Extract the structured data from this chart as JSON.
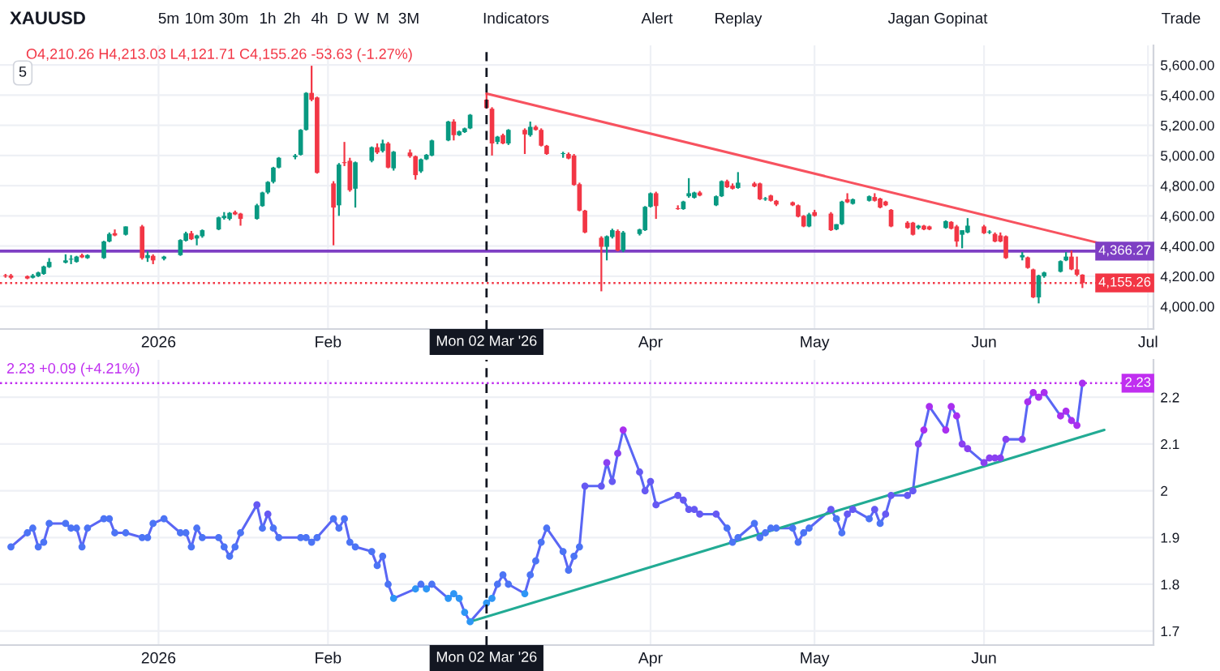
{
  "chart_data": [
    {
      "type": "candlestick",
      "title": "XAUUSD",
      "subtitle": "O4,210.26 H4,213.03 L4,121.71 C4,155.26 -53.63 (-1.27%)",
      "annotations": [
        "5m",
        "10m",
        "30m",
        "1h",
        "2h",
        "4h",
        "D",
        "W",
        "M",
        "3M",
        "Indicators",
        "Alert",
        "Replay",
        "Jagan Gopinat",
        "Trade",
        "5"
      ],
      "x": [
        "2025-12-04",
        "2025-12-05",
        "2025-12-08",
        "2025-12-09",
        "2025-12-10",
        "2025-12-11",
        "2025-12-12",
        "2025-12-15",
        "2025-12-16",
        "2025-12-17",
        "2025-12-18",
        "2025-12-19",
        "2025-12-22",
        "2025-12-23",
        "2025-12-24",
        "2025-12-26",
        "2025-12-29",
        "2025-12-30",
        "2025-12-31",
        "2026-01-02",
        "2026-01-05",
        "2026-01-06",
        "2026-01-07",
        "2026-01-08",
        "2026-01-09",
        "2026-01-12",
        "2026-01-13",
        "2026-01-14",
        "2026-01-15",
        "2026-01-16",
        "2026-01-19",
        "2026-01-20",
        "2026-01-21",
        "2026-01-22",
        "2026-01-23",
        "2026-01-26",
        "2026-01-27",
        "2026-01-28",
        "2026-01-29",
        "2026-01-30",
        "2026-02-02",
        "2026-02-03",
        "2026-02-04",
        "2026-02-05",
        "2026-02-06",
        "2026-02-09",
        "2026-02-10",
        "2026-02-11",
        "2026-02-12",
        "2026-02-13",
        "2026-02-16",
        "2026-02-17",
        "2026-02-18",
        "2026-02-19",
        "2026-02-20",
        "2026-02-23",
        "2026-02-24",
        "2026-02-25",
        "2026-02-26",
        "2026-02-27",
        "2026-03-02",
        "2026-03-03",
        "2026-03-04",
        "2026-03-05",
        "2026-03-06",
        "2026-03-09",
        "2026-03-10",
        "2026-03-11",
        "2026-03-12",
        "2026-03-13",
        "2026-03-16",
        "2026-03-17",
        "2026-03-18",
        "2026-03-19",
        "2026-03-20",
        "2026-03-23",
        "2026-03-24",
        "2026-03-25",
        "2026-03-26",
        "2026-03-27",
        "2026-03-30",
        "2026-03-31",
        "2026-04-01",
        "2026-04-02",
        "2026-04-06",
        "2026-04-07",
        "2026-04-08",
        "2026-04-09",
        "2026-04-10",
        "2026-04-13",
        "2026-04-14",
        "2026-04-15",
        "2026-04-16",
        "2026-04-17",
        "2026-04-20",
        "2026-04-21",
        "2026-04-22",
        "2026-04-23",
        "2026-04-24",
        "2026-04-27",
        "2026-04-28",
        "2026-04-29",
        "2026-04-30",
        "2026-05-01",
        "2026-05-04",
        "2026-05-05",
        "2026-05-06",
        "2026-05-07",
        "2026-05-08",
        "2026-05-11",
        "2026-05-12",
        "2026-05-13",
        "2026-05-14",
        "2026-05-15",
        "2026-05-18",
        "2026-05-19",
        "2026-05-20",
        "2026-05-21",
        "2026-05-22",
        "2026-05-25",
        "2026-05-26",
        "2026-05-27",
        "2026-05-28",
        "2026-05-29",
        "2026-06-01",
        "2026-06-02",
        "2026-06-03",
        "2026-06-04",
        "2026-06-05",
        "2026-06-08",
        "2026-06-09",
        "2026-06-10",
        "2026-06-11",
        "2026-06-12",
        "2026-06-15",
        "2026-06-16",
        "2026-06-17",
        "2026-06-18",
        "2026-06-19"
      ],
      "ohlc": [
        [
          4205,
          4215,
          4190,
          4200
        ],
        [
          4205,
          4215,
          4180,
          4190
        ],
        [
          4200,
          4205,
          4180,
          4185
        ],
        [
          4190,
          4215,
          4185,
          4205
        ],
        [
          4200,
          4230,
          4195,
          4225
        ],
        [
          4215,
          4270,
          4210,
          4265
        ],
        [
          4260,
          4320,
          4255,
          4295
        ],
        [
          4290,
          4345,
          4285,
          4305
        ],
        [
          4310,
          4340,
          4280,
          4315
        ],
        [
          4295,
          4335,
          4290,
          4330
        ],
        [
          4340,
          4350,
          4320,
          4325
        ],
        [
          4320,
          4345,
          4315,
          4340
        ],
        [
          4320,
          4435,
          4315,
          4430
        ],
        [
          4430,
          4490,
          4425,
          4480
        ],
        [
          4485,
          4510,
          4465,
          4470
        ],
        [
          4475,
          4530,
          4470,
          4530
        ],
        [
          4530,
          4540,
          4310,
          4320
        ],
        [
          4320,
          4365,
          4295,
          4340
        ],
        [
          4335,
          4345,
          4280,
          4305
        ],
        [
          4315,
          4335,
          4305,
          4330
        ],
        [
          4340,
          4445,
          4335,
          4440
        ],
        [
          4435,
          4495,
          4430,
          4485
        ],
        [
          4485,
          4500,
          4440,
          4445
        ],
        [
          4450,
          4475,
          4405,
          4470
        ],
        [
          4465,
          4510,
          4455,
          4505
        ],
        [
          4510,
          4595,
          4505,
          4590
        ],
        [
          4585,
          4625,
          4575,
          4600
        ],
        [
          4580,
          4625,
          4570,
          4620
        ],
        [
          4625,
          4635,
          4605,
          4610
        ],
        [
          4615,
          4620,
          4535,
          4580
        ],
        [
          4580,
          4680,
          4575,
          4670
        ],
        [
          4665,
          4760,
          4660,
          4755
        ],
        [
          4755,
          4830,
          4745,
          4825
        ],
        [
          4825,
          4925,
          4815,
          4920
        ],
        [
          4920,
          4990,
          4915,
          4985
        ],
        [
          4990,
          5010,
          4975,
          5000
        ],
        [
          5005,
          5175,
          5000,
          5170
        ],
        [
          5170,
          5420,
          5165,
          5415
        ],
        [
          5415,
          5595,
          5360,
          5370
        ],
        [
          5385,
          5390,
          4880,
          4885
        ],
        [
          4815,
          4830,
          4405,
          4655
        ],
        [
          4670,
          4950,
          4600,
          4940
        ],
        [
          4955,
          5090,
          4930,
          4950
        ],
        [
          4965,
          4985,
          4760,
          4770
        ],
        [
          4780,
          4960,
          4655,
          4955
        ],
        [
          4965,
          5060,
          4955,
          5055
        ],
        [
          5055,
          5080,
          5010,
          5020
        ],
        [
          5030,
          5105,
          5020,
          5080
        ],
        [
          5080,
          5090,
          4915,
          4920
        ],
        [
          4915,
          5030,
          4900,
          5025
        ],
        [
          5020,
          5040,
          4985,
          4995
        ],
        [
          4995,
          5000,
          4840,
          4870
        ],
        [
          4895,
          4980,
          4885,
          4975
        ],
        [
          4975,
          5010,
          4970,
          5005
        ],
        [
          5000,
          5105,
          4995,
          5100
        ],
        [
          5100,
          5230,
          5095,
          5225
        ],
        [
          5225,
          5240,
          5100,
          5135
        ],
        [
          5135,
          5165,
          5130,
          5160
        ],
        [
          5155,
          5185,
          5150,
          5180
        ],
        [
          5180,
          5275,
          5175,
          5270
        ],
        [
          5370,
          5415,
          5310,
          5315
        ],
        [
          5310,
          5320,
          5000,
          5080
        ],
        [
          5090,
          5130,
          5075,
          5125
        ],
        [
          5135,
          5145,
          5075,
          5080
        ],
        [
          5080,
          5175,
          5070,
          5170
        ],
        [
          5170,
          5180,
          5010,
          5140
        ],
        [
          5135,
          5225,
          5125,
          5190
        ],
        [
          5190,
          5200,
          5165,
          5170
        ],
        [
          5170,
          5180,
          5060,
          5065
        ],
        [
          5065,
          5070,
          5005,
          5010
        ],
        [
          5010,
          5025,
          4985,
          5015
        ],
        [
          5010,
          5020,
          4975,
          4980
        ],
        [
          5000,
          5010,
          4800,
          4805
        ],
        [
          4810,
          4820,
          4630,
          4635
        ],
        [
          4635,
          4640,
          4485,
          4490
        ],
        [
          4455,
          4465,
          4100,
          4395
        ],
        [
          4395,
          4470,
          4305,
          4465
        ],
        [
          4460,
          4515,
          4450,
          4505
        ],
        [
          4500,
          4510,
          4365,
          4370
        ],
        [
          4370,
          4500,
          4360,
          4490
        ],
        [
          4480,
          4515,
          4470,
          4510
        ],
        [
          4505,
          4665,
          4500,
          4660
        ],
        [
          4660,
          4755,
          4655,
          4750
        ],
        [
          4750,
          4760,
          4580,
          4665
        ],
        [
          4650,
          4670,
          4640,
          4645
        ],
        [
          4645,
          4700,
          4640,
          4695
        ],
        [
          4730,
          4850,
          4720,
          4750
        ],
        [
          4720,
          4760,
          4715,
          4755
        ],
        [
          4755,
          4765,
          4730,
          4735
        ],
        [
          4670,
          4735,
          4665,
          4730
        ],
        [
          4730,
          4835,
          4725,
          4830
        ],
        [
          4830,
          4840,
          4785,
          4790
        ],
        [
          4800,
          4815,
          4775,
          4780
        ],
        [
          4785,
          4890,
          4780,
          4820
        ],
        [
          4815,
          4825,
          4790,
          4795
        ],
        [
          4815,
          4820,
          4705,
          4710
        ],
        [
          4710,
          4725,
          4700,
          4715
        ],
        [
          4735,
          4740,
          4695,
          4700
        ],
        [
          4700,
          4705,
          4665,
          4675
        ],
        [
          4690,
          4695,
          4665,
          4670
        ],
        [
          4670,
          4675,
          4590,
          4595
        ],
        [
          4600,
          4605,
          4525,
          4530
        ],
        [
          4530,
          4620,
          4525,
          4610
        ],
        [
          4625,
          4640,
          4595,
          4600
        ],
        [
          4615,
          4625,
          4500,
          4505
        ],
        [
          4510,
          4545,
          4505,
          4545
        ],
        [
          4545,
          4700,
          4540,
          4695
        ],
        [
          4710,
          4750,
          4685,
          4690
        ],
        [
          4680,
          4715,
          4675,
          4710
        ],
        [
          4700,
          4735,
          4695,
          4730
        ],
        [
          4725,
          4750,
          4695,
          4700
        ],
        [
          4715,
          4720,
          4650,
          4655
        ],
        [
          4695,
          4700,
          4665,
          4670
        ],
        [
          4640,
          4645,
          4525,
          4530
        ],
        [
          4555,
          4565,
          4515,
          4520
        ],
        [
          4555,
          4560,
          4470,
          4475
        ],
        [
          4520,
          4540,
          4510,
          4535
        ],
        [
          4535,
          4540,
          4505,
          4510
        ],
        [
          4530,
          4535,
          4505,
          4510
        ],
        [
          4520,
          4570,
          4515,
          4565
        ],
        [
          4560,
          4565,
          4510,
          4515
        ],
        [
          4530,
          4540,
          4395,
          4430
        ],
        [
          4475,
          4505,
          4385,
          4505
        ],
        [
          4490,
          4585,
          4485,
          4535
        ],
        [
          4530,
          4540,
          4480,
          4485
        ],
        [
          4490,
          4505,
          4480,
          4495
        ],
        [
          4480,
          4490,
          4425,
          4430
        ],
        [
          4470,
          4490,
          4425,
          4430
        ],
        [
          4465,
          4470,
          4315,
          4320
        ],
        [
          4325,
          4360,
          4305,
          4340
        ],
        [
          4325,
          4330,
          4250,
          4255
        ],
        [
          4245,
          4250,
          4055,
          4060
        ],
        [
          4060,
          4210,
          4020,
          4205
        ],
        [
          4200,
          4230,
          4190,
          4225
        ],
        [
          4230,
          4305,
          4225,
          4300
        ],
        [
          4305,
          4360,
          4300,
          4330
        ],
        [
          4330,
          4370,
          4240,
          4245
        ],
        [
          4245,
          4330,
          4200,
          4210
        ],
        [
          4210.26,
          4213.03,
          4121.71,
          4155.26
        ]
      ],
      "colors": [
        "#f23645",
        "#f23645",
        "#f23645",
        "#089981",
        "#089981",
        "#089981",
        "#089981",
        "#089981",
        "#089981",
        "#089981",
        "#f23645",
        "#089981",
        "#089981",
        "#089981",
        "#f23645",
        "#089981",
        "#f23645",
        "#089981",
        "#f23645",
        "#089981",
        "#089981",
        "#089981",
        "#f23645",
        "#089981",
        "#089981",
        "#089981",
        "#089981",
        "#089981",
        "#f23645",
        "#f23645",
        "#089981",
        "#089981",
        "#089981",
        "#089981",
        "#089981",
        "#089981",
        "#089981",
        "#089981",
        "#f23645",
        "#f23645",
        "#f23645",
        "#089981",
        "#f23645",
        "#f23645",
        "#089981",
        "#089981",
        "#f23645",
        "#089981",
        "#f23645",
        "#089981",
        "#f23645",
        "#f23645",
        "#089981",
        "#089981",
        "#089981",
        "#089981",
        "#f23645",
        "#089981",
        "#089981",
        "#089981",
        "#f23645",
        "#f23645",
        "#089981",
        "#f23645",
        "#089981",
        "#f23645",
        "#089981",
        "#f23645",
        "#f23645",
        "#f23645",
        "#089981",
        "#f23645",
        "#f23645",
        "#f23645",
        "#f23645",
        "#f23645",
        "#089981",
        "#089981",
        "#f23645",
        "#089981",
        "#089981",
        "#089981",
        "#089981",
        "#f23645",
        "#f23645",
        "#089981",
        "#089981",
        "#089981",
        "#f23645",
        "#089981",
        "#089981",
        "#f23645",
        "#f23645",
        "#089981",
        "#f23645",
        "#f23645",
        "#089981",
        "#f23645",
        "#f23645",
        "#f23645",
        "#f23645",
        "#f23645",
        "#089981",
        "#f23645",
        "#f23645",
        "#089981",
        "#089981",
        "#f23645",
        "#089981",
        "#089981",
        "#f23645",
        "#f23645",
        "#f23645",
        "#f23645",
        "#f23645",
        "#f23645",
        "#089981",
        "#f23645",
        "#f23645",
        "#089981",
        "#f23645",
        "#f23645",
        "#089981",
        "#089981",
        "#f23645",
        "#089981",
        "#f23645",
        "#f23645",
        "#f23645",
        "#089981",
        "#f23645",
        "#f23645",
        "#089981",
        "#089981",
        "#089981",
        "#089981",
        "#f23645",
        "#f23645",
        "#f23645"
      ],
      "series": [
        {
          "type": "line",
          "x": [
            "2026-03-02",
            "2026-06-22"
          ],
          "values": [
            5410,
            4420
          ],
          "color": "#f7525f"
        }
      ],
      "xlim": [
        "2025-12-03",
        "2026-07-02"
      ],
      "xticks": [
        {
          "value": "2026-01-01",
          "label": "2026"
        },
        {
          "value": "2026-02-01",
          "label": "Feb"
        },
        {
          "value": "2026-04-01",
          "label": "Apr"
        },
        {
          "value": "2026-05-01",
          "label": "May"
        },
        {
          "value": "2026-06-01",
          "label": "Jun"
        },
        {
          "value": "2026-07-01",
          "label": "Jul"
        }
      ],
      "ylim": [
        3850,
        5730
      ],
      "yticks": [
        {
          "value": 4000,
          "label": "4,000.00"
        },
        {
          "value": 4200,
          "label": "4,200.00"
        },
        {
          "value": 4400,
          "label": "4,400.00"
        },
        {
          "value": 4600,
          "label": "4,600.00"
        },
        {
          "value": 4800,
          "label": "4,800.00"
        },
        {
          "value": 5000,
          "label": "5,000.00"
        },
        {
          "value": 5200,
          "label": "5,200.00"
        },
        {
          "value": 5400,
          "label": "5,400.00"
        },
        {
          "value": 5600,
          "label": "5,600.00"
        }
      ],
      "grid": true,
      "ref_lines": [
        {
          "axis": "y",
          "value": 4366.27,
          "label": "4,366.27",
          "color": "#7e3fc4",
          "line_style": "solid"
        },
        {
          "axis": "y",
          "value": 4155.26,
          "label": "4,155.26",
          "color": "#f23645",
          "line_style": "dotted"
        },
        {
          "axis": "x",
          "value": "2026-03-02",
          "label": "Mon 02 Mar '26",
          "color": "#131722",
          "line_style": "dashed"
        }
      ]
    },
    {
      "type": "line",
      "subtitle": "2.23 +0.09 (+4.21%)",
      "marker": "circle",
      "series": [
        {
          "x": [
            "2025-12-05",
            "2025-12-08",
            "2025-12-09",
            "2025-12-10",
            "2025-12-11",
            "2025-12-12",
            "2025-12-15",
            "2025-12-16",
            "2025-12-17",
            "2025-12-18",
            "2025-12-19",
            "2025-12-22",
            "2025-12-23",
            "2025-12-24",
            "2025-12-26",
            "2025-12-29",
            "2025-12-30",
            "2025-12-31",
            "2026-01-02",
            "2026-01-05",
            "2026-01-06",
            "2026-01-07",
            "2026-01-08",
            "2026-01-09",
            "2026-01-12",
            "2026-01-13",
            "2026-01-14",
            "2026-01-15",
            "2026-01-16",
            "2026-01-19",
            "2026-01-20",
            "2026-01-21",
            "2026-01-22",
            "2026-01-23",
            "2026-01-27",
            "2026-01-28",
            "2026-01-29",
            "2026-01-30",
            "2026-02-02",
            "2026-02-03",
            "2026-02-04",
            "2026-02-05",
            "2026-02-06",
            "2026-02-09",
            "2026-02-10",
            "2026-02-11",
            "2026-02-12",
            "2026-02-13",
            "2026-02-17",
            "2026-02-18",
            "2026-02-19",
            "2026-02-20",
            "2026-02-23",
            "2026-02-24",
            "2026-02-25",
            "2026-02-26",
            "2026-02-27",
            "2026-03-02",
            "2026-03-03",
            "2026-03-04",
            "2026-03-05",
            "2026-03-06",
            "2026-03-09",
            "2026-03-10",
            "2026-03-11",
            "2026-03-12",
            "2026-03-13",
            "2026-03-16",
            "2026-03-17",
            "2026-03-18",
            "2026-03-19",
            "2026-03-20",
            "2026-03-23",
            "2026-03-24",
            "2026-03-25",
            "2026-03-26",
            "2026-03-27",
            "2026-03-30",
            "2026-03-31",
            "2026-04-01",
            "2026-04-02",
            "2026-04-06",
            "2026-04-07",
            "2026-04-08",
            "2026-04-09",
            "2026-04-10",
            "2026-04-13",
            "2026-04-15",
            "2026-04-16",
            "2026-04-17",
            "2026-04-20",
            "2026-04-21",
            "2026-04-22",
            "2026-04-23",
            "2026-04-24",
            "2026-04-27",
            "2026-04-28",
            "2026-04-29",
            "2026-04-30",
            "2026-05-04",
            "2026-05-05",
            "2026-05-06",
            "2026-05-07",
            "2026-05-08",
            "2026-05-11",
            "2026-05-12",
            "2026-05-13",
            "2026-05-14",
            "2026-05-15",
            "2026-05-18",
            "2026-05-19",
            "2026-05-20",
            "2026-05-21",
            "2026-05-22",
            "2026-05-25",
            "2026-05-26",
            "2026-05-27",
            "2026-05-28",
            "2026-05-29",
            "2026-06-01",
            "2026-06-02",
            "2026-06-03",
            "2026-06-04",
            "2026-06-05",
            "2026-06-08",
            "2026-06-09",
            "2026-06-10",
            "2026-06-11",
            "2026-06-12",
            "2026-06-15",
            "2026-06-16",
            "2026-06-17",
            "2026-06-18",
            "2026-06-19"
          ],
          "values": [
            1.88,
            1.91,
            1.92,
            1.88,
            1.89,
            1.93,
            1.93,
            1.92,
            1.92,
            1.88,
            1.92,
            1.94,
            1.94,
            1.91,
            1.91,
            1.9,
            1.9,
            1.93,
            1.94,
            1.91,
            1.91,
            1.88,
            1.92,
            1.9,
            1.9,
            1.88,
            1.86,
            1.88,
            1.91,
            1.97,
            1.92,
            1.95,
            1.92,
            1.9,
            1.9,
            1.9,
            1.89,
            1.9,
            1.94,
            1.92,
            1.94,
            1.89,
            1.88,
            1.87,
            1.84,
            1.86,
            1.8,
            1.77,
            1.79,
            1.8,
            1.79,
            1.8,
            1.77,
            1.78,
            1.77,
            1.74,
            1.72,
            1.76,
            1.77,
            1.8,
            1.82,
            1.8,
            1.78,
            1.82,
            1.85,
            1.89,
            1.92,
            1.87,
            1.83,
            1.86,
            1.88,
            2.01,
            2.01,
            2.06,
            2.02,
            2.08,
            2.13,
            2.04,
            2.0,
            2.02,
            1.97,
            1.99,
            1.98,
            1.96,
            1.96,
            1.95,
            1.95,
            1.92,
            1.89,
            1.9,
            1.93,
            1.9,
            1.91,
            1.92,
            1.92,
            1.92,
            1.89,
            1.91,
            1.92,
            1.96,
            1.94,
            1.91,
            1.95,
            1.96,
            1.94,
            1.96,
            1.93,
            1.95,
            1.99,
            1.99,
            2.0,
            2.1,
            2.13,
            2.18,
            2.13,
            2.18,
            2.16,
            2.1,
            2.09,
            2.06,
            2.07,
            2.07,
            2.07,
            2.11,
            2.11,
            2.19,
            2.21,
            2.2,
            2.21,
            2.16,
            2.17,
            2.15,
            2.14,
            2.23
          ],
          "color": "#5a66f4",
          "colors": [
            "#4c74f5",
            "#4c74f5",
            "#4c74f5",
            "#4c74f5",
            "#4c74f5",
            "#4c74f5",
            "#4c74f5",
            "#4c74f5",
            "#4c74f5",
            "#4c74f5",
            "#4c74f5",
            "#4c74f5",
            "#4c74f5",
            "#4c74f5",
            "#4c74f5",
            "#4c74f5",
            "#4c74f5",
            "#4c74f5",
            "#4c74f5",
            "#4c74f5",
            "#4c74f5",
            "#4c74f5",
            "#4c74f5",
            "#4c74f5",
            "#4c74f5",
            "#4c74f5",
            "#4c74f5",
            "#4c74f5",
            "#4c74f5",
            "#6659f3",
            "#4c74f5",
            "#6659f3",
            "#4c74f5",
            "#4c74f5",
            "#4c74f5",
            "#4c74f5",
            "#4c74f5",
            "#4c74f5",
            "#4c74f5",
            "#4c74f5",
            "#4c74f5",
            "#4c74f5",
            "#4c74f5",
            "#4c74f5",
            "#4c74f5",
            "#4c74f5",
            "#4c74f5",
            "#2e96f5",
            "#2e96f5",
            "#4c74f5",
            "#2e96f5",
            "#4c74f5",
            "#2e96f5",
            "#2e96f5",
            "#2e96f5",
            "#2e96f5",
            "#2e96f5",
            "#2e96f5",
            "#2e96f5",
            "#4c74f5",
            "#4c74f5",
            "#4c74f5",
            "#2e96f5",
            "#4c74f5",
            "#4c74f5",
            "#4c74f5",
            "#4c74f5",
            "#4c74f5",
            "#4c74f5",
            "#4c74f5",
            "#4c74f5",
            "#6659f3",
            "#6659f3",
            "#8a40f1",
            "#6659f3",
            "#8a40f1",
            "#a92fef",
            "#6659f3",
            "#6659f3",
            "#6659f3",
            "#6659f3",
            "#6659f3",
            "#6659f3",
            "#6659f3",
            "#6659f3",
            "#6659f3",
            "#6659f3",
            "#4c74f5",
            "#4c74f5",
            "#4c74f5",
            "#4c74f5",
            "#4c74f5",
            "#4c74f5",
            "#4c74f5",
            "#4c74f5",
            "#4c74f5",
            "#4c74f5",
            "#4c74f5",
            "#4c74f5",
            "#6659f3",
            "#4c74f5",
            "#4c74f5",
            "#6659f3",
            "#6659f3",
            "#4c74f5",
            "#6659f3",
            "#4c74f5",
            "#6659f3",
            "#6659f3",
            "#6659f3",
            "#6659f3",
            "#8a40f1",
            "#a92fef",
            "#a92fef",
            "#a92fef",
            "#a92fef",
            "#a92fef",
            "#8a40f1",
            "#8a40f1",
            "#8a40f1",
            "#8a40f1",
            "#8a40f1",
            "#8a40f1",
            "#8a40f1",
            "#8a40f1",
            "#a92fef",
            "#a92fef",
            "#a92fef",
            "#a92fef",
            "#a92fef",
            "#a92fef",
            "#a92fef",
            "#a92fef",
            "#a92fef"
          ]
        },
        {
          "type": "line",
          "x": [
            "2026-02-27",
            "2026-06-23"
          ],
          "values": [
            1.72,
            2.13
          ],
          "color": "#22ab94",
          "marker": "none"
        }
      ],
      "xlim": [
        "2025-12-03",
        "2026-07-02"
      ],
      "xticks": [
        {
          "value": "2026-01-01",
          "label": "2026"
        },
        {
          "value": "2026-02-01",
          "label": "Feb"
        },
        {
          "value": "2026-04-01",
          "label": "Apr"
        },
        {
          "value": "2026-05-01",
          "label": "May"
        },
        {
          "value": "2026-06-01",
          "label": "Jun"
        }
      ],
      "ylim": [
        1.67,
        2.28
      ],
      "yticks": [
        1.7,
        1.8,
        1.9,
        2,
        2.1,
        2.2
      ],
      "grid": true,
      "ref_lines": [
        {
          "axis": "y",
          "value": 2.23,
          "label": "2.23",
          "color": "#c02ff0",
          "line_style": "dotted"
        },
        {
          "axis": "x",
          "value": "2026-03-02",
          "label": "Mon 02 Mar '26",
          "color": "#131722",
          "line_style": "dashed"
        }
      ]
    }
  ]
}
